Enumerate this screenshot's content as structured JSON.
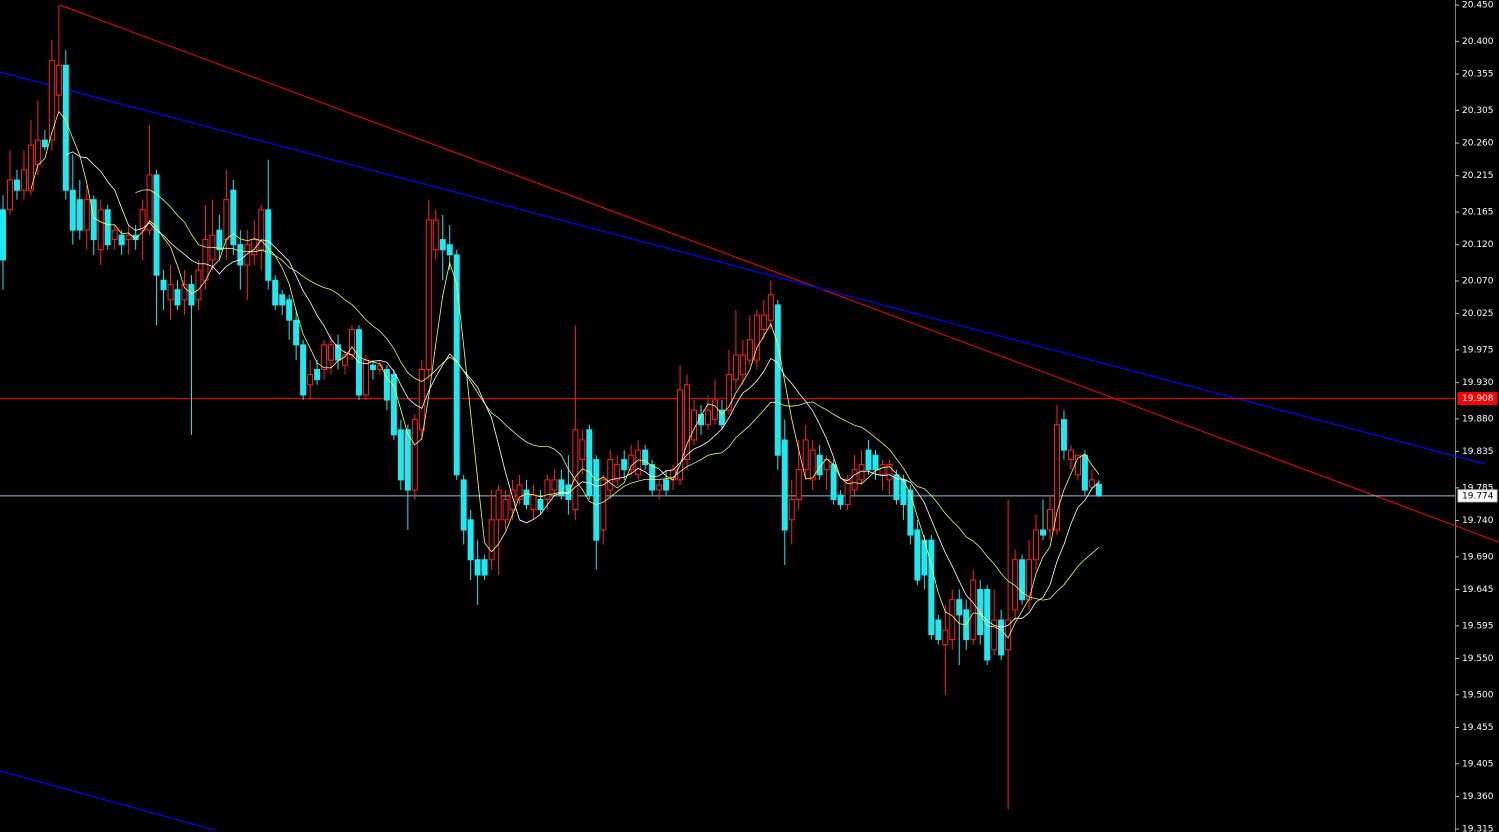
{
  "chart_data": {
    "type": "candlestick",
    "ylim": [
      19.311,
      20.457
    ],
    "yticks": [
      {
        "value": 20.45,
        "label": "20.450"
      },
      {
        "value": 20.4,
        "label": "20.400"
      },
      20.355,
      20.305,
      {
        "value": 20.26,
        "label": "20.260"
      },
      20.215,
      20.165,
      {
        "value": 20.12,
        "label": "20.120"
      },
      {
        "value": 20.07,
        "label": "20.070"
      },
      20.025,
      19.975,
      {
        "value": 19.93,
        "label": "19.930"
      },
      {
        "value": 19.88,
        "label": "19.880"
      },
      19.835,
      19.785,
      {
        "value": 19.74,
        "label": "19.740"
      },
      {
        "value": 19.69,
        "label": "19.690"
      },
      19.645,
      19.595,
      {
        "value": 19.55,
        "label": "19.550"
      },
      {
        "value": 19.5,
        "label": "19.500"
      },
      19.455,
      19.405,
      {
        "value": 19.36,
        "label": "19.360"
      },
      19.315
    ],
    "up_color": "#ff2020",
    "down_color": "#1ee8f0",
    "hlines": [
      {
        "value": 19.908,
        "color": "#ff0000"
      },
      {
        "value": 19.774,
        "color": "#8fc3d6"
      }
    ],
    "candles": [
      [
        20.168,
        20.188,
        20.058,
        20.099
      ],
      [
        20.168,
        20.25,
        20.161,
        20.209
      ],
      [
        20.209,
        20.223,
        20.182,
        20.195
      ],
      [
        20.195,
        20.25,
        20.182,
        20.223
      ],
      [
        20.195,
        20.292,
        20.188,
        20.257
      ],
      [
        20.23,
        20.319,
        20.216,
        20.264
      ],
      [
        20.264,
        20.278,
        20.25,
        20.255
      ],
      [
        20.264,
        20.402,
        20.25,
        20.374
      ],
      [
        20.326,
        20.45,
        20.305,
        20.367
      ],
      [
        20.367,
        20.388,
        20.182,
        20.195
      ],
      [
        20.195,
        20.244,
        20.12,
        20.14
      ],
      [
        20.182,
        20.209,
        20.127,
        20.14
      ],
      [
        20.14,
        20.202,
        20.113,
        20.182
      ],
      [
        20.182,
        20.188,
        20.106,
        20.127
      ],
      [
        20.113,
        20.182,
        20.092,
        20.168
      ],
      [
        20.168,
        20.175,
        20.113,
        20.12
      ],
      [
        20.127,
        20.147,
        20.113,
        20.14
      ],
      [
        20.133,
        20.14,
        20.106,
        20.12
      ],
      [
        20.127,
        20.147,
        20.106,
        20.133
      ],
      [
        20.133,
        20.147,
        20.113,
        20.127
      ],
      [
        20.14,
        20.182,
        20.099,
        20.168
      ],
      [
        20.14,
        20.285,
        20.133,
        20.216
      ],
      [
        20.216,
        20.223,
        20.009,
        20.078
      ],
      [
        20.071,
        20.085,
        20.03,
        20.058
      ],
      [
        20.044,
        20.092,
        20.016,
        20.065
      ],
      [
        20.058,
        20.071,
        20.03,
        20.037
      ],
      [
        20.044,
        20.085,
        20.023,
        20.065
      ],
      [
        20.065,
        20.078,
        19.858,
        20.037
      ],
      [
        20.044,
        20.099,
        20.03,
        20.085
      ],
      [
        20.071,
        20.175,
        20.058,
        20.127
      ],
      [
        20.099,
        20.182,
        20.085,
        20.133
      ],
      [
        20.14,
        20.161,
        20.099,
        20.113
      ],
      [
        20.127,
        20.223,
        20.099,
        20.182
      ],
      [
        20.195,
        20.209,
        20.106,
        20.12
      ],
      [
        20.12,
        20.14,
        20.058,
        20.092
      ],
      [
        20.092,
        20.14,
        20.044,
        20.12
      ],
      [
        20.106,
        20.154,
        20.092,
        20.127
      ],
      [
        20.113,
        20.175,
        20.085,
        20.168
      ],
      [
        20.168,
        20.237,
        20.058,
        20.071
      ],
      [
        20.071,
        20.078,
        20.03,
        20.037
      ],
      [
        20.051,
        20.058,
        20.023,
        20.037
      ],
      [
        20.044,
        20.051,
        19.989,
        20.016
      ],
      [
        20.016,
        20.03,
        19.961,
        19.982
      ],
      [
        19.982,
        19.989,
        19.906,
        19.913
      ],
      [
        19.927,
        19.961,
        19.906,
        19.941
      ],
      [
        19.948,
        19.961,
        19.927,
        19.934
      ],
      [
        19.948,
        19.989,
        19.934,
        19.982
      ],
      [
        19.961,
        19.996,
        19.941,
        19.982
      ],
      [
        19.982,
        19.996,
        19.948,
        19.961
      ],
      [
        19.954,
        19.975,
        19.941,
        19.968
      ],
      [
        19.968,
        20.009,
        19.961,
        20.003
      ],
      [
        20.003,
        20.009,
        19.906,
        19.913
      ],
      [
        19.913,
        19.968,
        19.906,
        19.961
      ],
      [
        19.954,
        19.961,
        19.934,
        19.948
      ],
      [
        19.948,
        19.961,
        19.941,
        19.954
      ],
      [
        19.948,
        19.954,
        19.892,
        19.906
      ],
      [
        19.941,
        19.948,
        19.851,
        19.858
      ],
      [
        19.865,
        19.879,
        19.782,
        19.796
      ],
      [
        19.865,
        19.872,
        19.727,
        19.782
      ],
      [
        19.782,
        19.886,
        19.769,
        19.879
      ],
      [
        19.865,
        19.961,
        19.851,
        19.948
      ],
      [
        19.948,
        20.182,
        19.934,
        20.154
      ],
      [
        20.113,
        20.168,
        20.099,
        20.154
      ],
      [
        20.127,
        20.161,
        20.071,
        20.113
      ],
      [
        20.12,
        20.147,
        20.085,
        20.106
      ],
      [
        20.106,
        20.113,
        19.796,
        19.803
      ],
      [
        19.796,
        19.803,
        19.707,
        19.727
      ],
      [
        19.741,
        19.755,
        19.658,
        19.686
      ],
      [
        19.686,
        19.713,
        19.624,
        19.665
      ],
      [
        19.686,
        19.693,
        19.658,
        19.665
      ],
      [
        19.686,
        19.782,
        19.672,
        19.741
      ],
      [
        19.741,
        19.789,
        19.665,
        19.782
      ],
      [
        19.741,
        19.782,
        19.727,
        19.769
      ],
      [
        19.755,
        19.796,
        19.741,
        19.782
      ],
      [
        19.769,
        19.803,
        19.762,
        19.789
      ],
      [
        19.782,
        19.796,
        19.755,
        19.762
      ],
      [
        19.755,
        19.789,
        19.741,
        19.775
      ],
      [
        19.769,
        19.782,
        19.748,
        19.755
      ],
      [
        19.769,
        19.803,
        19.755,
        19.796
      ],
      [
        19.782,
        19.81,
        19.775,
        19.796
      ],
      [
        19.796,
        19.81,
        19.769,
        19.775
      ],
      [
        19.789,
        19.83,
        19.748,
        19.769
      ],
      [
        19.755,
        20.009,
        19.741,
        19.865
      ],
      [
        19.824,
        19.865,
        19.803,
        19.851
      ],
      [
        19.865,
        19.872,
        19.769,
        19.775
      ],
      [
        19.824,
        19.83,
        19.672,
        19.713
      ],
      [
        19.727,
        19.803,
        19.707,
        19.796
      ],
      [
        19.782,
        19.837,
        19.769,
        19.824
      ],
      [
        19.796,
        19.83,
        19.789,
        19.817
      ],
      [
        19.824,
        19.837,
        19.796,
        19.81
      ],
      [
        19.81,
        19.844,
        19.803,
        19.83
      ],
      [
        19.803,
        19.851,
        19.796,
        19.837
      ],
      [
        19.837,
        19.844,
        19.81,
        19.817
      ],
      [
        19.817,
        19.824,
        19.775,
        19.782
      ],
      [
        19.782,
        19.796,
        19.769,
        19.789
      ],
      [
        19.796,
        19.81,
        19.775,
        19.782
      ],
      [
        19.796,
        19.817,
        19.782,
        19.81
      ],
      [
        19.796,
        19.954,
        19.789,
        19.92
      ],
      [
        19.824,
        19.941,
        19.81,
        19.927
      ],
      [
        19.851,
        19.906,
        19.844,
        19.892
      ],
      [
        19.886,
        19.899,
        19.858,
        19.872
      ],
      [
        19.872,
        19.913,
        19.865,
        19.892
      ],
      [
        19.879,
        19.934,
        19.872,
        19.906
      ],
      [
        19.892,
        19.906,
        19.865,
        19.872
      ],
      [
        19.892,
        19.975,
        19.886,
        19.941
      ],
      [
        19.934,
        20.03,
        19.92,
        19.968
      ],
      [
        19.941,
        19.989,
        19.927,
        19.968
      ],
      [
        19.961,
        20.023,
        19.954,
        19.989
      ],
      [
        19.961,
        20.03,
        19.948,
        20.023
      ],
      [
        20.003,
        20.044,
        19.989,
        20.023
      ],
      [
        20.016,
        20.071,
        20.003,
        20.051
      ],
      [
        20.037,
        20.044,
        19.81,
        19.83
      ],
      [
        19.851,
        19.879,
        19.679,
        19.727
      ],
      [
        19.741,
        19.796,
        19.707,
        19.769
      ],
      [
        19.769,
        19.851,
        19.755,
        19.81
      ],
      [
        19.81,
        19.872,
        19.796,
        19.851
      ],
      [
        19.796,
        19.851,
        19.782,
        19.837
      ],
      [
        19.83,
        19.844,
        19.796,
        19.803
      ],
      [
        19.81,
        19.83,
        19.782,
        19.824
      ],
      [
        19.817,
        19.824,
        19.762,
        19.769
      ],
      [
        19.775,
        19.782,
        19.755,
        19.762
      ],
      [
        19.762,
        19.803,
        19.755,
        19.796
      ],
      [
        19.782,
        19.83,
        19.775,
        19.81
      ],
      [
        19.796,
        19.837,
        19.789,
        19.817
      ],
      [
        19.837,
        19.851,
        19.803,
        19.81
      ],
      [
        19.83,
        19.837,
        19.796,
        19.81
      ],
      [
        19.803,
        19.824,
        19.782,
        19.817
      ],
      [
        19.796,
        19.824,
        19.775,
        19.817
      ],
      [
        19.803,
        19.81,
        19.762,
        19.769
      ],
      [
        19.796,
        19.803,
        19.741,
        19.762
      ],
      [
        19.782,
        19.789,
        19.707,
        19.72
      ],
      [
        19.727,
        19.741,
        19.651,
        19.658
      ],
      [
        19.713,
        19.72,
        19.645,
        19.665
      ],
      [
        19.713,
        19.72,
        19.576,
        19.583
      ],
      [
        19.603,
        19.61,
        19.569,
        19.576
      ],
      [
        19.569,
        19.624,
        19.5,
        19.589
      ],
      [
        19.576,
        19.645,
        19.562,
        19.631
      ],
      [
        19.631,
        19.645,
        19.541,
        19.61
      ],
      [
        19.617,
        19.631,
        19.562,
        19.576
      ],
      [
        19.576,
        19.672,
        19.569,
        19.658
      ],
      [
        19.645,
        19.658,
        19.569,
        19.583
      ],
      [
        19.645,
        19.651,
        19.541,
        19.548
      ],
      [
        19.562,
        19.645,
        19.555,
        19.603
      ],
      [
        19.603,
        19.617,
        19.548,
        19.555
      ],
      [
        19.562,
        19.769,
        19.342,
        19.603
      ],
      [
        19.617,
        19.7,
        19.603,
        19.686
      ],
      [
        19.686,
        19.693,
        19.624,
        19.631
      ],
      [
        19.631,
        19.713,
        19.617,
        19.686
      ],
      [
        19.686,
        19.748,
        19.672,
        19.727
      ],
      [
        19.727,
        19.769,
        19.713,
        19.72
      ],
      [
        19.727,
        19.775,
        19.713,
        19.755
      ],
      [
        19.727,
        19.899,
        19.72,
        19.872
      ],
      [
        19.879,
        19.892,
        19.824,
        19.837
      ],
      [
        19.824,
        19.844,
        19.81,
        19.837
      ],
      [
        19.803,
        19.83,
        19.796,
        19.83
      ],
      [
        19.83,
        19.837,
        19.775,
        19.782
      ],
      [
        19.786,
        19.81,
        19.782,
        19.796
      ],
      [
        19.79,
        19.796,
        19.772,
        19.774
      ]
    ]
  }
}
